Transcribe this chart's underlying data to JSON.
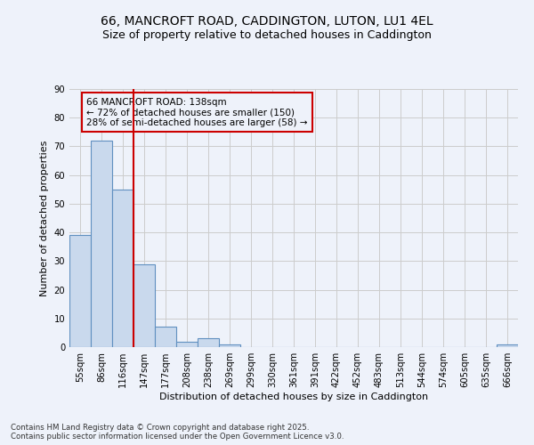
{
  "title1": "66, MANCROFT ROAD, CADDINGTON, LUTON, LU1 4EL",
  "title2": "Size of property relative to detached houses in Caddington",
  "xlabel": "Distribution of detached houses by size in Caddington",
  "ylabel": "Number of detached properties",
  "categories": [
    "55sqm",
    "86sqm",
    "116sqm",
    "147sqm",
    "177sqm",
    "208sqm",
    "238sqm",
    "269sqm",
    "299sqm",
    "330sqm",
    "361sqm",
    "391sqm",
    "422sqm",
    "452sqm",
    "483sqm",
    "513sqm",
    "544sqm",
    "574sqm",
    "605sqm",
    "635sqm",
    "666sqm"
  ],
  "values": [
    39,
    72,
    55,
    29,
    7,
    2,
    3,
    1,
    0,
    0,
    0,
    0,
    0,
    0,
    0,
    0,
    0,
    0,
    0,
    0,
    1
  ],
  "bar_color": "#c9d9ed",
  "bar_edge_color": "#6090c0",
  "grid_color": "#cccccc",
  "bg_color": "#eef2fa",
  "vline_x": 2.5,
  "vline_color": "#cc0000",
  "annotation_text": "66 MANCROFT ROAD: 138sqm\n← 72% of detached houses are smaller (150)\n28% of semi-detached houses are larger (58) →",
  "annotation_box_color": "#cc0000",
  "ylim": [
    0,
    90
  ],
  "yticks": [
    0,
    10,
    20,
    30,
    40,
    50,
    60,
    70,
    80,
    90
  ],
  "footnote": "Contains HM Land Registry data © Crown copyright and database right 2025.\nContains public sector information licensed under the Open Government Licence v3.0."
}
